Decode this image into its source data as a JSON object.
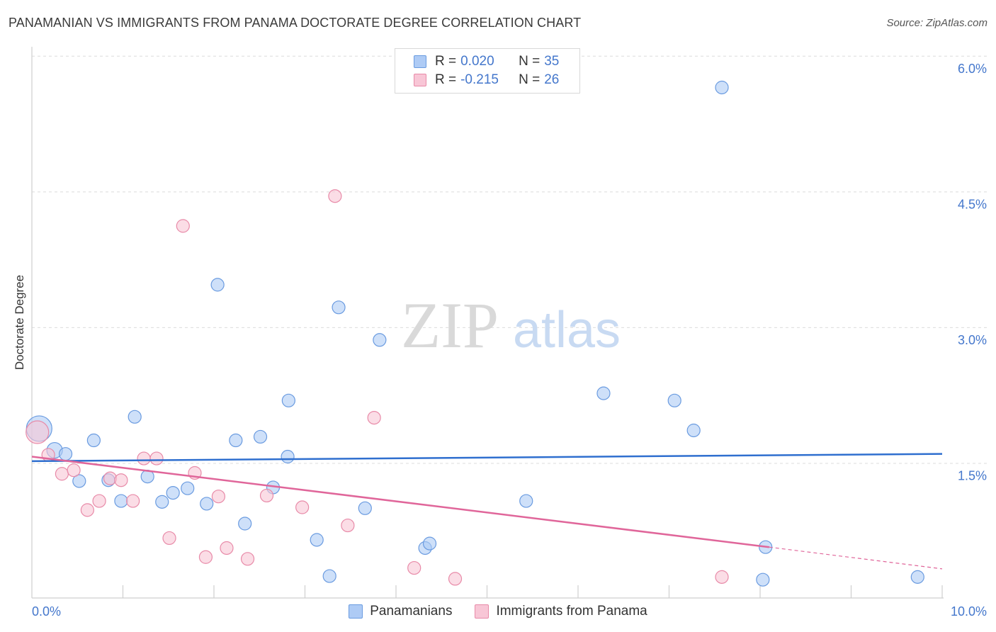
{
  "header": {
    "title": "PANAMANIAN VS IMMIGRANTS FROM PANAMA DOCTORATE DEGREE CORRELATION CHART",
    "source": "Source: ZipAtlas.com"
  },
  "watermark": {
    "zip": "ZIP",
    "atlas": "atlas"
  },
  "legend": {
    "rows": [
      {
        "r_label": "R =",
        "r_value": "0.020",
        "n_label": "N =",
        "n_value": "35",
        "color": "#aecbf5",
        "border": "#6a9be0"
      },
      {
        "r_label": "R =",
        "r_value": "-0.215",
        "n_label": "N =",
        "n_value": "26",
        "color": "#f8c6d6",
        "border": "#e88aa8"
      }
    ]
  },
  "bottom_legend": [
    {
      "label": "Panamanians",
      "color": "#aecbf5",
      "border": "#6a9be0"
    },
    {
      "label": "Immigrants from Panama",
      "color": "#f8c6d6",
      "border": "#e88aa8"
    }
  ],
  "chart_data": {
    "type": "scatter",
    "title": "PANAMANIAN VS IMMIGRANTS FROM PANAMA DOCTORATE DEGREE CORRELATION CHART",
    "xlabel": "",
    "ylabel": "Doctorate Degree",
    "xlim": [
      0,
      10
    ],
    "ylim": [
      0,
      6.25
    ],
    "x_tick_labels": [
      "0.0%",
      "10.0%"
    ],
    "y_ticks": [
      1.5,
      3.0,
      4.5,
      6.0
    ],
    "y_tick_labels": [
      "1.5%",
      "3.0%",
      "4.5%",
      "6.0%"
    ],
    "grid": "horizontal dashed",
    "legend_position": "top-center",
    "series": [
      {
        "name": "Panamanians",
        "color": "#6a9be0",
        "fill": "#aecbf5",
        "trend": {
          "x": [
            0,
            10
          ],
          "y": [
            1.52,
            1.6
          ]
        },
        "points": [
          [
            0.08,
            1.88,
            18
          ],
          [
            0.25,
            1.64,
            11
          ],
          [
            0.37,
            1.6,
            9
          ],
          [
            0.52,
            1.3,
            9
          ],
          [
            0.68,
            1.75,
            9
          ],
          [
            0.84,
            1.31,
            9
          ],
          [
            0.98,
            1.08,
            9
          ],
          [
            1.13,
            2.01,
            9
          ],
          [
            1.27,
            1.35,
            9
          ],
          [
            1.43,
            1.07,
            9
          ],
          [
            1.55,
            1.17,
            9
          ],
          [
            1.71,
            1.22,
            9
          ],
          [
            1.92,
            1.05,
            9
          ],
          [
            2.04,
            3.47,
            9
          ],
          [
            2.24,
            1.75,
            9
          ],
          [
            2.34,
            0.83,
            9
          ],
          [
            2.51,
            1.79,
            9
          ],
          [
            2.65,
            1.23,
            9
          ],
          [
            2.82,
            2.19,
            9
          ],
          [
            2.81,
            1.57,
            9
          ],
          [
            3.13,
            0.65,
            9
          ],
          [
            3.27,
            0.25,
            9
          ],
          [
            3.37,
            3.22,
            9
          ],
          [
            3.66,
            1.0,
            9
          ],
          [
            3.82,
            2.86,
            9
          ],
          [
            4.32,
            0.56,
            9
          ],
          [
            4.37,
            0.61,
            9
          ],
          [
            5.43,
            1.08,
            9
          ],
          [
            6.28,
            2.27,
            9
          ],
          [
            7.06,
            2.19,
            9
          ],
          [
            7.27,
            1.86,
            9
          ],
          [
            7.58,
            5.65,
            9
          ],
          [
            8.03,
            0.21,
            9
          ],
          [
            8.06,
            0.57,
            9
          ],
          [
            9.73,
            0.24,
            9
          ]
        ]
      },
      {
        "name": "Immigrants from Panama",
        "color": "#e88aa8",
        "fill": "#f8c6d6",
        "trend": {
          "x": [
            0,
            8.1
          ],
          "y": [
            1.57,
            0.57
          ]
        },
        "trend_dashed": {
          "x": [
            8.1,
            10
          ],
          "y": [
            0.57,
            0.33
          ]
        },
        "points": [
          [
            0.06,
            1.84,
            16
          ],
          [
            0.18,
            1.59,
            9
          ],
          [
            0.33,
            1.38,
            9
          ],
          [
            0.46,
            1.42,
            9
          ],
          [
            0.61,
            0.98,
            9
          ],
          [
            0.74,
            1.08,
            9
          ],
          [
            0.86,
            1.33,
            9
          ],
          [
            0.98,
            1.31,
            9
          ],
          [
            1.11,
            1.08,
            9
          ],
          [
            1.23,
            1.55,
            9
          ],
          [
            1.37,
            1.55,
            9
          ],
          [
            1.51,
            0.67,
            9
          ],
          [
            1.66,
            4.12,
            9
          ],
          [
            1.79,
            1.39,
            9
          ],
          [
            1.91,
            0.46,
            9
          ],
          [
            2.05,
            1.13,
            9
          ],
          [
            2.14,
            0.56,
            9
          ],
          [
            2.37,
            0.44,
            9
          ],
          [
            2.58,
            1.14,
            9
          ],
          [
            2.97,
            1.01,
            9
          ],
          [
            3.33,
            4.45,
            9
          ],
          [
            3.47,
            0.81,
            9
          ],
          [
            3.76,
            2.0,
            9
          ],
          [
            4.2,
            0.34,
            9
          ],
          [
            4.65,
            0.22,
            9
          ],
          [
            7.58,
            0.24,
            9
          ]
        ]
      }
    ]
  }
}
